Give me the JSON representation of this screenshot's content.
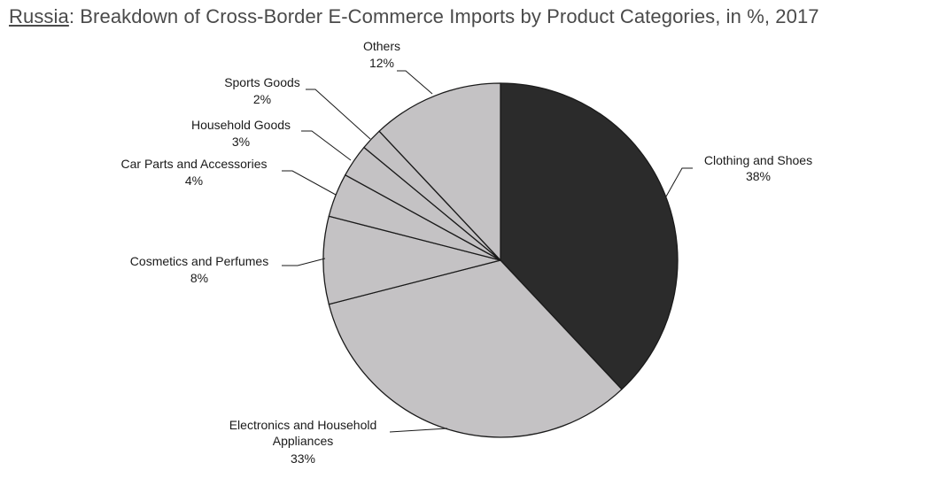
{
  "title": {
    "country": "Russia",
    "rest": ": Breakdown of Cross-Border E-Commerce Imports by Product Categories, in %, 2017"
  },
  "chart_data": {
    "type": "pie",
    "slices": [
      {
        "label": "Clothing and Shoes",
        "value": 38,
        "value_label": "38%",
        "color": "#2b2b2b"
      },
      {
        "label": "Electronics and Household Appliances",
        "value": 33,
        "value_label": "33%",
        "color": "#c4c2c4"
      },
      {
        "label": "Cosmetics and Perfumes",
        "value": 8,
        "value_label": "8%",
        "color": "#c4c2c4"
      },
      {
        "label": "Car Parts and Accessories",
        "value": 4,
        "value_label": "4%",
        "color": "#c4c2c4"
      },
      {
        "label": "Household Goods",
        "value": 3,
        "value_label": "3%",
        "color": "#c4c2c4"
      },
      {
        "label": "Sports Goods",
        "value": 2,
        "value_label": "2%",
        "color": "#c4c2c4"
      },
      {
        "label": "Others",
        "value": 12,
        "value_label": "12%",
        "color": "#c4c2c4"
      }
    ],
    "start_angle": "12 o'clock",
    "direction": "clockwise",
    "legend": "none"
  }
}
